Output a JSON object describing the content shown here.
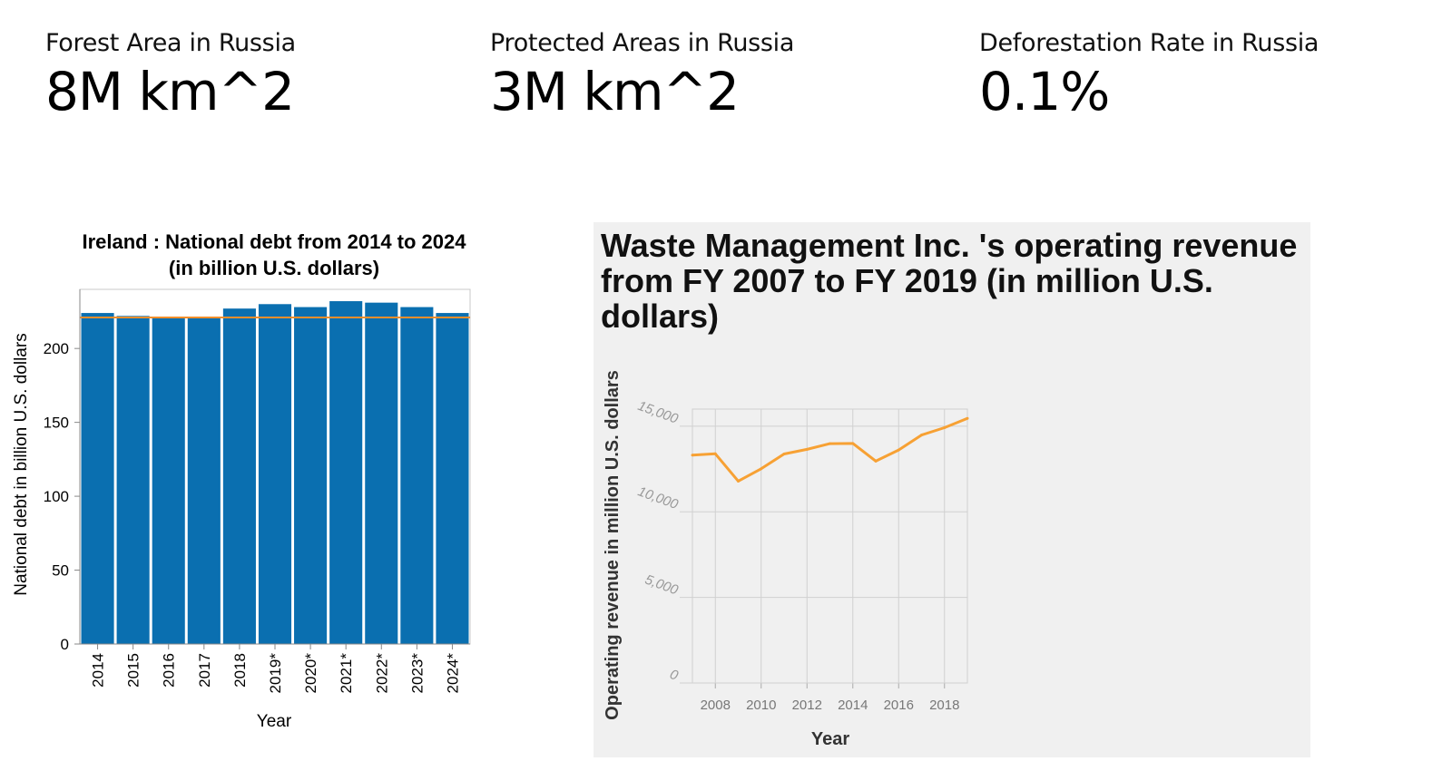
{
  "kpis": [
    {
      "label": "Forest Area in Russia",
      "value": "8M km^2"
    },
    {
      "label": "Protected Areas in Russia",
      "value": "3M km^2"
    },
    {
      "label": "Deforestation Rate in Russia",
      "value": "0.1%"
    }
  ],
  "colors": {
    "bar": "#0a6fb0",
    "rule": "#f28e2b",
    "line": "#f7a134",
    "panel_bg": "#f0f0f0",
    "grid": "#d0d0d0"
  },
  "chart_data": [
    {
      "type": "bar",
      "title_lines": [
        "Ireland : National debt from 2014 to 2024",
        "(in billion U.S. dollars)"
      ],
      "xlabel": "Year",
      "ylabel": "National debt in billion U.S. dollars",
      "categories": [
        "2014",
        "2015",
        "2016",
        "2017",
        "2018",
        "2019*",
        "2020*",
        "2021*",
        "2022*",
        "2023*",
        "2024*"
      ],
      "values": [
        224,
        222,
        221,
        221.5,
        227,
        230,
        228,
        232,
        231,
        228,
        224
      ],
      "reference_line": 221,
      "ylim": [
        0,
        240
      ],
      "yticks": [
        0,
        50,
        100,
        150,
        200
      ],
      "grid": false
    },
    {
      "type": "line",
      "title": "Waste Management Inc. 's operating revenue from FY 2007 to FY 2019 (in million U.S. dollars)",
      "xlabel": "Year",
      "ylabel": "Operating revenue in million U.S. dollars",
      "x": [
        2007,
        2008,
        2009,
        2010,
        2011,
        2012,
        2013,
        2014,
        2015,
        2016,
        2017,
        2018,
        2019
      ],
      "y": [
        13310,
        13388,
        11791,
        12515,
        13378,
        13649,
        13983,
        13996,
        12961,
        13609,
        14485,
        14914,
        15455
      ],
      "xlim": [
        2007,
        2019
      ],
      "ylim": [
        0,
        16000
      ],
      "xticks": [
        2008,
        2010,
        2012,
        2014,
        2016,
        2018
      ],
      "yticks": [
        0,
        5000,
        10000,
        15000
      ],
      "ytick_labels": [
        "0",
        "5,000",
        "10,000",
        "15,000"
      ],
      "grid": true
    }
  ]
}
